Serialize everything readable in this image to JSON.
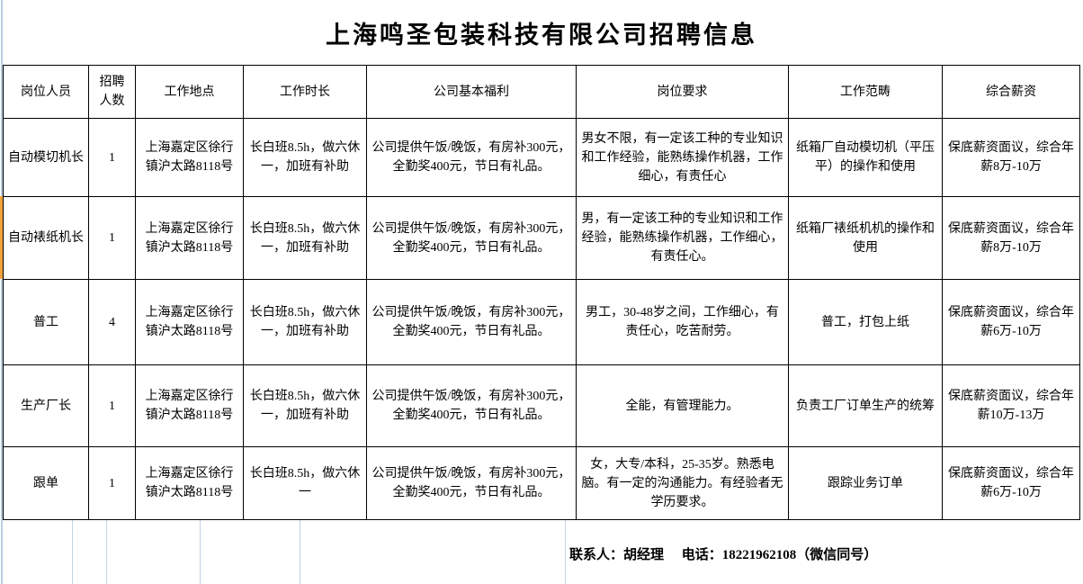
{
  "title": "上海鸣圣包装科技有限公司招聘信息",
  "table": {
    "headers": [
      "岗位人员",
      "招聘人数",
      "工作地点",
      "工作时长",
      "公司基本福利",
      "岗位要求",
      "工作范畴",
      "综合薪资"
    ],
    "rows": [
      {
        "position": "自动模切机长",
        "count": "1",
        "location": "上海嘉定区徐行镇沪太路8118号",
        "hours": "长白班8.5h，做六休一，加班有补助",
        "benefits": "公司提供午饭/晚饭，有房补300元，全勤奖400元，节日有礼品。",
        "requirements": "男女不限，有一定该工种的专业知识和工作经验，能熟练操作机器，工作细心，有责任心",
        "scope": "纸箱厂自动模切机（平压平）的操作和使用",
        "salary": "保底薪资面议，综合年薪8万-10万"
      },
      {
        "position": "自动裱纸机长",
        "count": "1",
        "location": "上海嘉定区徐行镇沪太路8118号",
        "hours": "长白班8.5h，做六休一，加班有补助",
        "benefits": "公司提供午饭/晚饭，有房补300元，全勤奖400元，节日有礼品。",
        "requirements": "男，有一定该工种的专业知识和工作经验，能熟练操作机器，工作细心，有责任心。",
        "scope": "纸箱厂裱纸机机的操作和使用",
        "salary": "保底薪资面议，综合年薪8万-10万"
      },
      {
        "position": "普工",
        "count": "4",
        "location": "上海嘉定区徐行镇沪太路8118号",
        "hours": "长白班8.5h，做六休一，加班有补助",
        "benefits": "公司提供午饭/晚饭，有房补300元，全勤奖400元，节日有礼品。",
        "requirements": "男工，30-48岁之间，工作细心，有责任心，吃苦耐劳。",
        "scope": "普工，打包上纸",
        "salary": "保底薪资面议，综合年薪6万-10万"
      },
      {
        "position": "生产厂长",
        "count": "1",
        "location": "上海嘉定区徐行镇沪太路8118号",
        "hours": "长白班8.5h，做六休一，加班有补助",
        "benefits": "公司提供午饭/晚饭，有房补300元，全勤奖400元，节日有礼品。",
        "requirements": "全能，有管理能力。",
        "scope": "负责工厂订单生产的统筹",
        "salary": "保底薪资面议，综合年薪10万-13万"
      },
      {
        "position": "跟单",
        "count": "1",
        "location": "上海嘉定区徐行镇沪太路8118号",
        "hours": "长白班8.5h，做六休一",
        "benefits": "公司提供午饭/晚饭，有房补300元，全勤奖400元，节日有礼品。",
        "requirements": "女，大专/本科，25-35岁。熟悉电脑。有一定的沟通能力。有经验者无学历要求。",
        "scope": "跟踪业务订单",
        "salary": "保底薪资面议，综合年薪6万-10万"
      }
    ]
  },
  "footer": {
    "contact_label": "联系人：胡经理",
    "phone_label": "电话：18221962108（微信同号）"
  },
  "colors": {
    "row_highlight_orange": "#f2a33c",
    "sheet_gridline_blue": "#b9cce2",
    "bottom_gridline_blue": "#c3d2e3",
    "table_border": "#000000"
  }
}
